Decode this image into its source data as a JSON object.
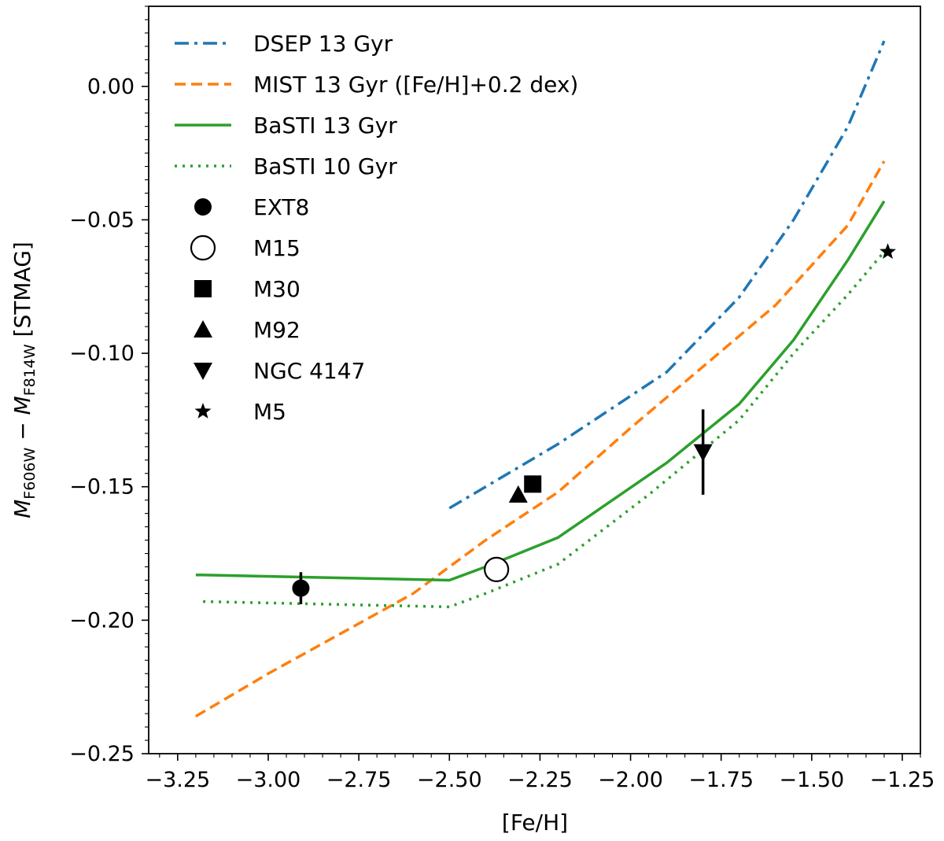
{
  "chart_data": {
    "type": "line",
    "xlabel": "[Fe/H]",
    "ylabel": {
      "m1": "M",
      "sub1": "F606W",
      "minus": " − ",
      "m2": "M",
      "sub2": "F814W",
      "unit": " [STMAG]"
    },
    "xlim": [
      -3.33,
      -1.2
    ],
    "ylim": [
      -0.25,
      0.03
    ],
    "x_ticks": [
      -3.25,
      -3.0,
      -2.75,
      -2.5,
      -2.25,
      -2.0,
      -1.75,
      -1.5,
      -1.25
    ],
    "x_tick_labels": [
      "−3.25",
      "−3.00",
      "−2.75",
      "−2.50",
      "−2.25",
      "−2.00",
      "−1.75",
      "−1.50",
      "−1.25"
    ],
    "y_ticks": [
      -0.25,
      -0.2,
      -0.15,
      -0.1,
      -0.05,
      0.0
    ],
    "y_tick_labels": [
      "−0.25",
      "−0.20",
      "−0.15",
      "−0.10",
      "−0.05",
      "0.00"
    ],
    "legend_position": "upper-left",
    "series": [
      {
        "name": "DSEP 13 Gyr",
        "color": "#1f77b4",
        "style": "dashdot",
        "x": [
          -2.5,
          -2.2,
          -1.9,
          -1.7,
          -1.55,
          -1.4,
          -1.3
        ],
        "y": [
          -0.158,
          -0.134,
          -0.107,
          -0.079,
          -0.05,
          -0.015,
          0.017
        ]
      },
      {
        "name": "MIST 13 Gyr ([Fe/H]+0.2 dex)",
        "color": "#ff7f0e",
        "style": "dashed",
        "x": [
          -3.2,
          -3.0,
          -2.8,
          -2.6,
          -2.4,
          -2.2,
          -2.0,
          -1.8,
          -1.6,
          -1.4,
          -1.3
        ],
        "y": [
          -0.236,
          -0.22,
          -0.205,
          -0.19,
          -0.17,
          -0.152,
          -0.128,
          -0.105,
          -0.082,
          -0.052,
          -0.028
        ]
      },
      {
        "name": "BaSTI 13 Gyr",
        "color": "#2ca02c",
        "style": "solid",
        "x": [
          -3.2,
          -2.5,
          -2.4,
          -2.2,
          -1.9,
          -1.7,
          -1.55,
          -1.4,
          -1.3
        ],
        "y": [
          -0.183,
          -0.185,
          -0.18,
          -0.169,
          -0.141,
          -0.119,
          -0.095,
          -0.065,
          -0.043
        ]
      },
      {
        "name": "BaSTI 10 Gyr",
        "color": "#2ca02c",
        "style": "dotted",
        "x": [
          -3.18,
          -2.5,
          -2.4,
          -2.2,
          -1.95,
          -1.7,
          -1.55,
          -1.4,
          -1.3
        ],
        "y": [
          -0.193,
          -0.195,
          -0.19,
          -0.179,
          -0.153,
          -0.125,
          -0.1,
          -0.078,
          -0.062
        ]
      }
    ],
    "points": [
      {
        "name": "EXT8",
        "marker": "circle-filled",
        "x": -2.91,
        "y": -0.188,
        "yerr": 0.006
      },
      {
        "name": "M15",
        "marker": "circle-open",
        "x": -2.37,
        "y": -0.181
      },
      {
        "name": "M30",
        "marker": "square",
        "x": -2.27,
        "y": -0.149
      },
      {
        "name": "M92",
        "marker": "triangle-up",
        "x": -2.31,
        "y": -0.153
      },
      {
        "name": "NGC 4147",
        "marker": "triangle-down",
        "x": -1.8,
        "y": -0.137,
        "yerr": 0.016
      },
      {
        "name": "M5",
        "marker": "star",
        "x": -1.29,
        "y": -0.062
      }
    ]
  }
}
